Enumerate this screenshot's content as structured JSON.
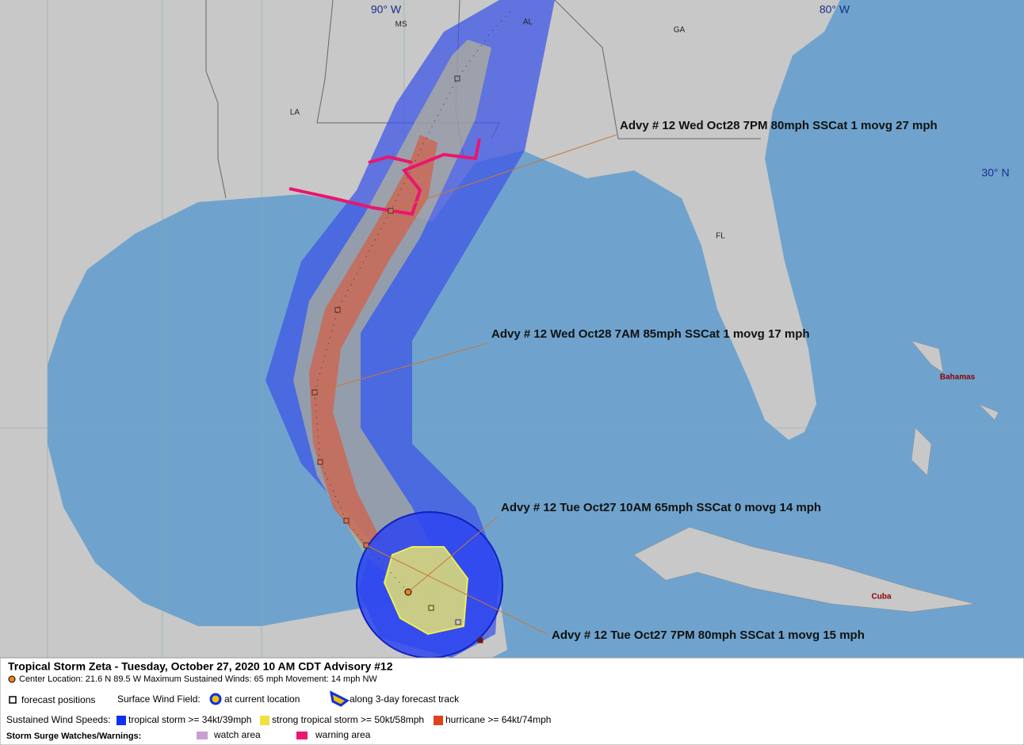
{
  "map": {
    "grid_labels": [
      "90° W",
      "80° W",
      "30° N"
    ],
    "region_labels": [
      "MS",
      "AL",
      "GA",
      "LA",
      "FL",
      "Bahamas",
      "Cuba"
    ],
    "annotations": [
      "Advy # 12 Wed Oct28 7PM  80mph SSCat 1 movg 27 mph",
      "Advy # 12 Wed Oct28 7AM  85mph SSCat 1 movg 17 mph",
      "Advy # 12 Tue Oct27 10AM  65mph SSCat 0 movg 14 mph",
      "Advy # 12 Tue Oct27 7PM  80mph SSCat 1 movg 15 mph"
    ]
  },
  "legend": {
    "title": "Tropical Storm Zeta  -  Tuesday, October 27, 2020  10 AM CDT   Advisory #12",
    "details": "Center Location: 21.6 N   89.5 W   Maximum Sustained Winds: 65 mph   Movement: 14 mph NW",
    "forecast_positions": "forecast positions",
    "surface_wind_field": "Surface Wind Field:",
    "at_current_location": "at current location",
    "along_track": "along 3-day forecast track",
    "sustained_label": "Sustained Wind Speeds:",
    "tropical_storm": "tropical storm >= 34kt/39mph",
    "strong_tropical_storm": "strong tropical storm >= 50kt/58mph",
    "hurricane": "hurricane >= 64kt/74mph",
    "surge_label": "Storm Surge Watches/Warnings:",
    "watch": "watch area",
    "warning": "warning area"
  }
}
